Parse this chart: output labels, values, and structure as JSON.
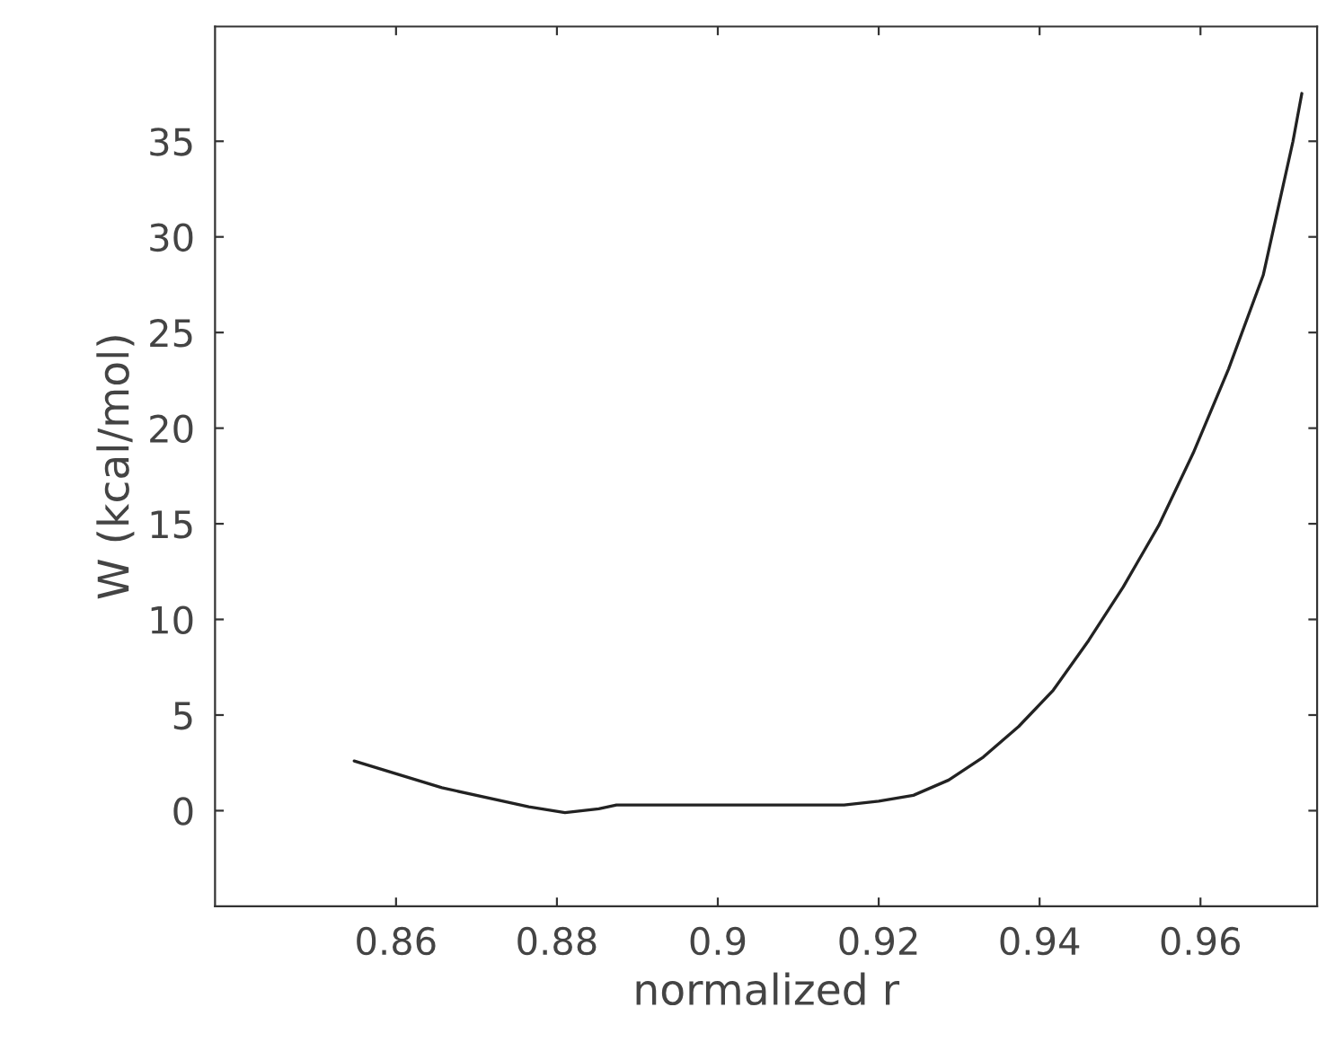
{
  "chart_data": {
    "type": "line",
    "xlabel": "normalized r",
    "ylabel": "W (kcal/mol)",
    "xlim": [
      0.8375,
      0.9745
    ],
    "ylim": [
      -5,
      41
    ],
    "xticks": [
      0.86,
      0.88,
      {
        "value": 0.9,
        "label": "0.9"
      },
      0.92,
      0.94,
      0.96
    ],
    "yticks": [
      0,
      5,
      10,
      15,
      20,
      25,
      30,
      35
    ],
    "grid": false,
    "series": [
      {
        "color": "#222222",
        "x": [
          0.8548,
          0.8657,
          0.8765,
          0.881,
          0.8852,
          0.8874,
          0.8983,
          0.9157,
          0.92,
          0.9243,
          0.9287,
          0.933,
          0.9374,
          0.9417,
          0.9461,
          0.9504,
          0.9548,
          0.9591,
          0.9635,
          0.9678,
          0.9715,
          0.9726
        ],
        "values": [
          2.6,
          1.2,
          0.2,
          -0.1,
          0.1,
          0.3,
          0.3,
          0.3,
          0.5,
          0.8,
          1.6,
          2.8,
          4.4,
          6.3,
          8.9,
          11.7,
          14.9,
          18.7,
          23.1,
          28.0,
          35.0,
          37.5
        ]
      }
    ]
  }
}
